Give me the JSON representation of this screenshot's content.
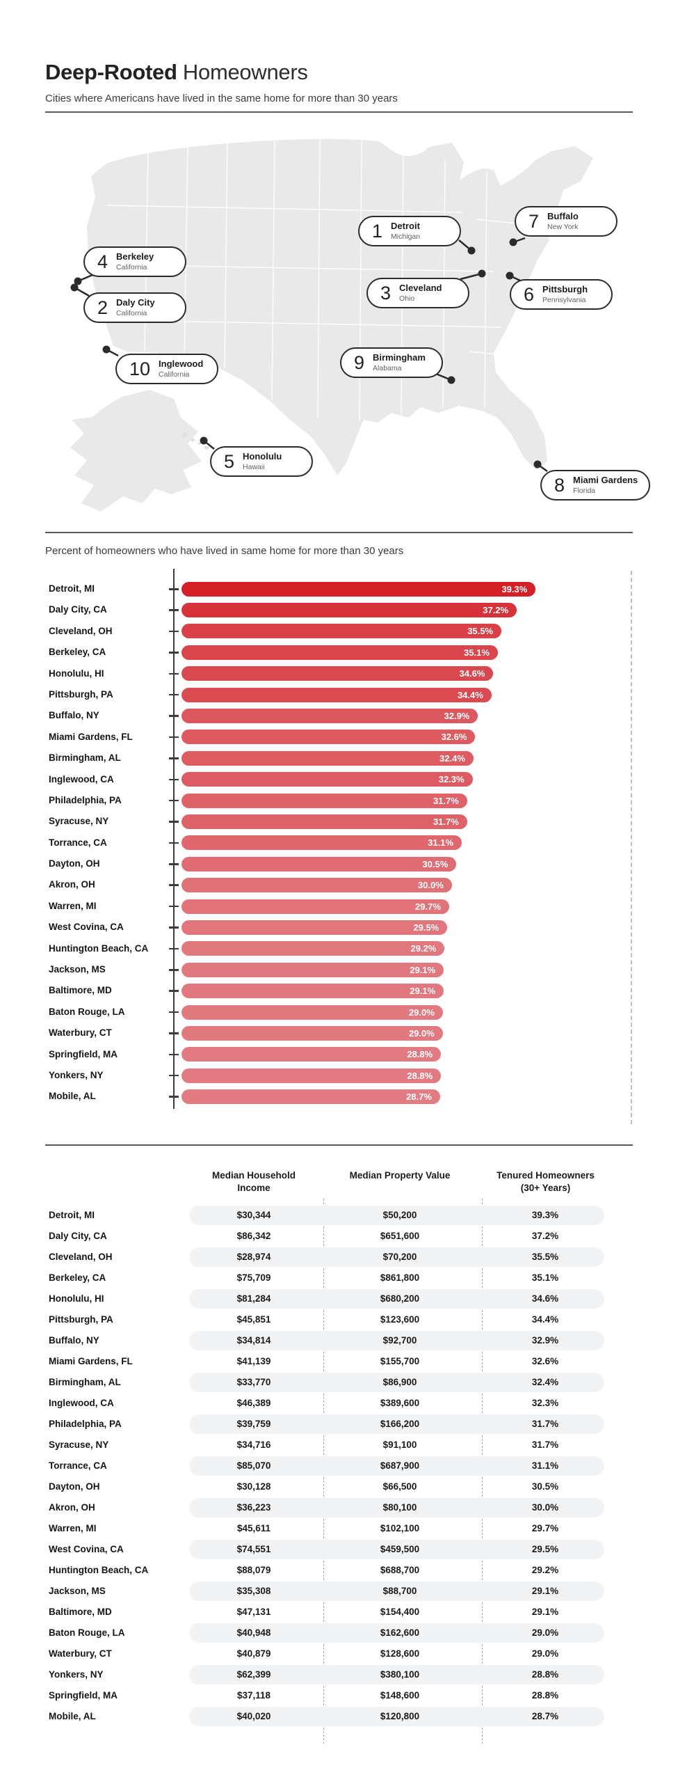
{
  "header": {
    "title_bold": "Deep-Rooted",
    "title_regular": "Homeowners",
    "subtitle": "Cities where Americans have lived in the same home for more than 30 years"
  },
  "map": {
    "callouts": [
      {
        "rank": "1",
        "city": "Detroit",
        "state": "Michigan"
      },
      {
        "rank": "2",
        "city": "Daly City",
        "state": "California"
      },
      {
        "rank": "3",
        "city": "Cleveland",
        "state": "Ohio"
      },
      {
        "rank": "4",
        "city": "Berkeley",
        "state": "California"
      },
      {
        "rank": "5",
        "city": "Honolulu",
        "state": "Hawaii"
      },
      {
        "rank": "6",
        "city": "Pittsburgh",
        "state": "Pennsylvania"
      },
      {
        "rank": "7",
        "city": "Buffalo",
        "state": "New York"
      },
      {
        "rank": "8",
        "city": "Miami Gardens",
        "state": "Florida"
      },
      {
        "rank": "9",
        "city": "Birmingham",
        "state": "Alabama"
      },
      {
        "rank": "10",
        "city": "Inglewood",
        "state": "California"
      }
    ]
  },
  "chart_data": {
    "type": "bar",
    "orientation": "horizontal",
    "title": "Percent of homeowners who have lived in same home for more than 30 years",
    "categories": [
      "Detroit, MI",
      "Daly City, CA",
      "Cleveland, OH",
      "Berkeley, CA",
      "Honolulu, HI",
      "Pittsburgh, PA",
      "Buffalo, NY",
      "Miami Gardens, FL",
      "Birmingham, AL",
      "Inglewood, CA",
      "Philadelphia, PA",
      "Syracuse, NY",
      "Torrance, CA",
      "Dayton, OH",
      "Akron, OH",
      "Warren, MI",
      "West Covina, CA",
      "Huntington Beach, CA",
      "Jackson, MS",
      "Baltimore, MD",
      "Baton Rouge, LA",
      "Waterbury, CT",
      "Springfield, MA",
      "Yonkers, NY",
      "Mobile, AL"
    ],
    "values": [
      39.3,
      37.2,
      35.5,
      35.1,
      34.6,
      34.4,
      32.9,
      32.6,
      32.4,
      32.3,
      31.7,
      31.7,
      31.1,
      30.5,
      30.0,
      29.7,
      29.5,
      29.2,
      29.1,
      29.1,
      29.0,
      29.0,
      28.8,
      28.8,
      28.7
    ],
    "value_labels": [
      "39.3%",
      "37.2%",
      "35.5%",
      "35.1%",
      "34.6%",
      "34.4%",
      "32.9%",
      "32.6%",
      "32.4%",
      "32.3%",
      "31.7%",
      "31.7%",
      "31.1%",
      "30.5%",
      "30.0%",
      "29.7%",
      "29.5%",
      "29.2%",
      "29.1%",
      "29.1%",
      "29.0%",
      "29.0%",
      "28.8%",
      "28.8%",
      "28.7%"
    ],
    "unit": "%",
    "xlim": [
      0,
      50
    ],
    "reference_line": {
      "x": 50,
      "style": "dashed"
    },
    "grid": false,
    "legend": false,
    "bar_color_max": "#d41f27",
    "bar_color_min": "#e27c82",
    "value_label_color": "#ffffff"
  },
  "table": {
    "columns": [
      "Median Household Income",
      "Median Property Value",
      "Tenured Homeowners (30+ Years)"
    ],
    "rows": [
      {
        "city": "Detroit, MI",
        "income": "$30,344",
        "value": "$50,200",
        "tenure": "39.3%"
      },
      {
        "city": "Daly City, CA",
        "income": "$86,342",
        "value": "$651,600",
        "tenure": "37.2%"
      },
      {
        "city": "Cleveland, OH",
        "income": "$28,974",
        "value": "$70,200",
        "tenure": "35.5%"
      },
      {
        "city": "Berkeley, CA",
        "income": "$75,709",
        "value": "$861,800",
        "tenure": "35.1%"
      },
      {
        "city": "Honolulu, HI",
        "income": "$81,284",
        "value": "$680,200",
        "tenure": "34.6%"
      },
      {
        "city": "Pittsburgh, PA",
        "income": "$45,851",
        "value": "$123,600",
        "tenure": "34.4%"
      },
      {
        "city": "Buffalo, NY",
        "income": "$34,814",
        "value": "$92,700",
        "tenure": "32.9%"
      },
      {
        "city": "Miami Gardens, FL",
        "income": "$41,139",
        "value": "$155,700",
        "tenure": "32.6%"
      },
      {
        "city": "Birmingham, AL",
        "income": "$33,770",
        "value": "$86,900",
        "tenure": "32.4%"
      },
      {
        "city": "Inglewood, CA",
        "income": "$46,389",
        "value": "$389,600",
        "tenure": "32.3%"
      },
      {
        "city": "Philadelphia, PA",
        "income": "$39,759",
        "value": "$166,200",
        "tenure": "31.7%"
      },
      {
        "city": "Syracuse, NY",
        "income": "$34,716",
        "value": "$91,100",
        "tenure": "31.7%"
      },
      {
        "city": "Torrance, CA",
        "income": "$85,070",
        "value": "$687,900",
        "tenure": "31.1%"
      },
      {
        "city": "Dayton, OH",
        "income": "$30,128",
        "value": "$66,500",
        "tenure": "30.5%"
      },
      {
        "city": "Akron, OH",
        "income": "$36,223",
        "value": "$80,100",
        "tenure": "30.0%"
      },
      {
        "city": "Warren, MI",
        "income": "$45,611",
        "value": "$102,100",
        "tenure": "29.7%"
      },
      {
        "city": "West Covina, CA",
        "income": "$74,551",
        "value": "$459,500",
        "tenure": "29.5%"
      },
      {
        "city": "Huntington Beach, CA",
        "income": "$88,079",
        "value": "$688,700",
        "tenure": "29.2%"
      },
      {
        "city": "Jackson, MS",
        "income": "$35,308",
        "value": "$88,700",
        "tenure": "29.1%"
      },
      {
        "city": "Baltimore, MD",
        "income": "$47,131",
        "value": "$154,400",
        "tenure": "29.1%"
      },
      {
        "city": "Baton Rouge, LA",
        "income": "$40,948",
        "value": "$162,600",
        "tenure": "29.0%"
      },
      {
        "city": "Waterbury, CT",
        "income": "$40,879",
        "value": "$128,600",
        "tenure": "29.0%"
      },
      {
        "city": "Yonkers, NY",
        "income": "$62,399",
        "value": "$380,100",
        "tenure": "28.8%"
      },
      {
        "city": "Springfield, MA",
        "income": "$37,118",
        "value": "$148,600",
        "tenure": "28.8%"
      },
      {
        "city": "Mobile, AL",
        "income": "$40,020",
        "value": "$120,800",
        "tenure": "28.7%"
      }
    ],
    "zebra_color": "#f2f3f5"
  }
}
